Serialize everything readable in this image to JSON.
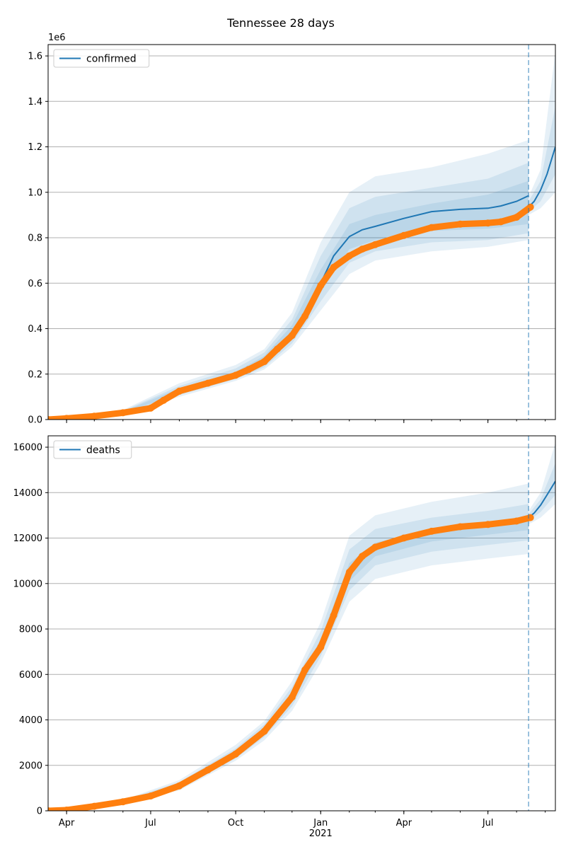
{
  "figure": {
    "title": "Tennessee 28 days",
    "x_ticks": [
      {
        "date": "2020-04-01",
        "label": "Apr"
      },
      {
        "date": "2020-07-01",
        "label": "Jul"
      },
      {
        "date": "2020-10-01",
        "label": "Oct"
      },
      {
        "date": "2021-01-01",
        "label": "Jan"
      },
      {
        "date": "2021-04-01",
        "label": "Apr"
      },
      {
        "date": "2021-07-01",
        "label": "Jul"
      }
    ],
    "x_year_label": "2021"
  },
  "colors": {
    "model_line": "#1f77b4",
    "band": "#1f77b4",
    "observed": "#ff7f0e",
    "grid": "#b0b0b0"
  },
  "chart_data": [
    {
      "type": "line",
      "name": "confirmed",
      "legend_location": "upper left",
      "grid": "horizontal",
      "xlim": [
        "2020-03-12",
        "2021-09-12"
      ],
      "ylim": [
        0,
        1650000
      ],
      "y_offset_label": "1e6",
      "y_scale": 1000000,
      "y_ticks": [
        0,
        200000,
        400000,
        600000,
        800000,
        1000000,
        1200000,
        1400000,
        1600000
      ],
      "y_tick_labels": [
        "0.0",
        "0.2",
        "0.4",
        "0.6",
        "0.8",
        "1.0",
        "1.2",
        "1.4",
        "1.6"
      ],
      "forecast_start": "2021-08-14",
      "observed": {
        "x": [
          "2020-03-12",
          "2020-04-01",
          "2020-05-01",
          "2020-06-01",
          "2020-07-01",
          "2020-07-15",
          "2020-08-01",
          "2020-09-01",
          "2020-10-01",
          "2020-10-15",
          "2020-11-01",
          "2020-11-15",
          "2020-12-01",
          "2020-12-15",
          "2021-01-01",
          "2021-01-15",
          "2021-02-01",
          "2021-02-15",
          "2021-03-01",
          "2021-04-01",
          "2021-05-01",
          "2021-06-01",
          "2021-07-01",
          "2021-07-15",
          "2021-08-01",
          "2021-08-16"
        ],
        "y": [
          0,
          5000,
          15000,
          30000,
          50000,
          85000,
          125000,
          160000,
          195000,
          220000,
          255000,
          310000,
          370000,
          455000,
          590000,
          670000,
          720000,
          750000,
          770000,
          810000,
          845000,
          860000,
          865000,
          870000,
          890000,
          935000
        ]
      },
      "model": {
        "x": [
          "2020-03-12",
          "2020-04-01",
          "2020-05-01",
          "2020-06-01",
          "2020-07-01",
          "2020-07-15",
          "2020-08-01",
          "2020-09-01",
          "2020-10-01",
          "2020-10-15",
          "2020-11-01",
          "2020-11-15",
          "2020-12-01",
          "2020-12-15",
          "2021-01-01",
          "2021-01-15",
          "2021-02-01",
          "2021-02-15",
          "2021-03-01",
          "2021-04-01",
          "2021-05-01",
          "2021-06-01",
          "2021-07-01",
          "2021-07-15",
          "2021-08-01",
          "2021-08-14"
        ],
        "y": [
          0,
          5000,
          15000,
          30000,
          50000,
          85000,
          125000,
          160000,
          195000,
          220000,
          255000,
          310000,
          375000,
          465000,
          600000,
          720000,
          805000,
          835000,
          850000,
          885000,
          915000,
          925000,
          930000,
          940000,
          960000,
          985000
        ]
      },
      "forecast": {
        "x": [
          "2021-08-14",
          "2021-08-20",
          "2021-08-27",
          "2021-09-03",
          "2021-09-12"
        ],
        "y": [
          935000,
          960000,
          1010000,
          1080000,
          1200000
        ]
      },
      "bands": [
        {
          "x": [
            "2020-03-12",
            "2020-06-01",
            "2020-08-01",
            "2020-10-01",
            "2020-11-01",
            "2020-12-01",
            "2021-01-01",
            "2021-02-01",
            "2021-03-01",
            "2021-05-01",
            "2021-07-01",
            "2021-08-14"
          ],
          "low": [
            0,
            22000,
            100000,
            170000,
            220000,
            320000,
            480000,
            640000,
            700000,
            740000,
            760000,
            790000
          ],
          "high": [
            0,
            42000,
            160000,
            240000,
            310000,
            470000,
            780000,
            1000000,
            1070000,
            1110000,
            1170000,
            1230000
          ]
        },
        {
          "x": [
            "2020-03-12",
            "2020-06-01",
            "2020-08-01",
            "2020-10-01",
            "2020-11-01",
            "2020-12-01",
            "2021-01-01",
            "2021-02-01",
            "2021-03-01",
            "2021-05-01",
            "2021-07-01",
            "2021-08-14"
          ],
          "low": [
            0,
            25000,
            108000,
            178000,
            230000,
            335000,
            520000,
            690000,
            740000,
            780000,
            790000,
            820000
          ],
          "high": [
            0,
            38000,
            148000,
            225000,
            295000,
            440000,
            720000,
            930000,
            980000,
            1020000,
            1060000,
            1130000
          ]
        },
        {
          "x": [
            "2020-03-12",
            "2020-06-01",
            "2020-08-01",
            "2020-10-01",
            "2020-11-01",
            "2020-12-01",
            "2021-01-01",
            "2021-02-01",
            "2021-03-01",
            "2021-05-01",
            "2021-07-01",
            "2021-08-14"
          ],
          "low": [
            0,
            27000,
            115000,
            185000,
            240000,
            350000,
            560000,
            750000,
            790000,
            830000,
            840000,
            860000
          ],
          "high": [
            0,
            35000,
            138000,
            210000,
            280000,
            415000,
            660000,
            860000,
            900000,
            950000,
            990000,
            1050000
          ]
        }
      ],
      "forecast_bands": [
        {
          "x": [
            "2021-08-14",
            "2021-08-27",
            "2021-09-12"
          ],
          "low": [
            900000,
            930000,
            1000000
          ],
          "high": [
            980000,
            1100000,
            1620000
          ]
        },
        {
          "x": [
            "2021-08-14",
            "2021-08-27",
            "2021-09-12"
          ],
          "low": [
            915000,
            960000,
            1080000
          ],
          "high": [
            960000,
            1050000,
            1380000
          ]
        }
      ]
    },
    {
      "type": "line",
      "name": "deaths",
      "legend_location": "upper left",
      "grid": "horizontal",
      "xlim": [
        "2020-03-12",
        "2021-09-12"
      ],
      "ylim": [
        0,
        16500
      ],
      "y_scale": 1,
      "y_ticks": [
        0,
        2000,
        4000,
        6000,
        8000,
        10000,
        12000,
        14000,
        16000
      ],
      "y_tick_labels": [
        "0",
        "2000",
        "4000",
        "6000",
        "8000",
        "10000",
        "12000",
        "14000",
        "16000"
      ],
      "forecast_start": "2021-08-14",
      "observed": {
        "x": [
          "2020-03-12",
          "2020-04-01",
          "2020-05-01",
          "2020-06-01",
          "2020-07-01",
          "2020-08-01",
          "2020-09-01",
          "2020-10-01",
          "2020-11-01",
          "2020-12-01",
          "2020-12-15",
          "2021-01-01",
          "2021-01-15",
          "2021-02-01",
          "2021-02-15",
          "2021-03-01",
          "2021-04-01",
          "2021-05-01",
          "2021-06-01",
          "2021-07-01",
          "2021-08-01",
          "2021-08-16"
        ],
        "y": [
          0,
          30,
          200,
          400,
          650,
          1100,
          1800,
          2500,
          3500,
          5000,
          6200,
          7200,
          8600,
          10500,
          11200,
          11600,
          12000,
          12300,
          12500,
          12600,
          12750,
          12900
        ]
      },
      "model": {
        "x": [
          "2020-03-12",
          "2020-04-01",
          "2020-05-01",
          "2020-06-01",
          "2020-07-01",
          "2020-08-01",
          "2020-09-01",
          "2020-10-01",
          "2020-11-01",
          "2020-12-01",
          "2020-12-15",
          "2021-01-01",
          "2021-01-15",
          "2021-02-01",
          "2021-02-15",
          "2021-03-01",
          "2021-04-01",
          "2021-05-01",
          "2021-06-01",
          "2021-07-01",
          "2021-08-01",
          "2021-08-14"
        ],
        "y": [
          0,
          30,
          200,
          400,
          650,
          1100,
          1800,
          2500,
          3500,
          5000,
          6200,
          7200,
          8600,
          10500,
          11200,
          11600,
          12000,
          12300,
          12500,
          12600,
          12750,
          12900
        ]
      },
      "forecast": {
        "x": [
          "2021-08-14",
          "2021-08-20",
          "2021-08-27",
          "2021-09-03",
          "2021-09-12"
        ],
        "y": [
          12900,
          13100,
          13450,
          13900,
          14500
        ]
      },
      "bands": [
        {
          "x": [
            "2020-03-12",
            "2020-06-01",
            "2020-08-01",
            "2020-10-01",
            "2020-11-01",
            "2020-12-01",
            "2021-01-01",
            "2021-02-01",
            "2021-03-01",
            "2021-05-01",
            "2021-07-01",
            "2021-08-14"
          ],
          "low": [
            0,
            320,
            900,
            2200,
            3100,
            4400,
            6500,
            9200,
            10200,
            10800,
            11100,
            11300
          ],
          "high": [
            0,
            480,
            1350,
            2900,
            3950,
            5700,
            8300,
            12100,
            13000,
            13600,
            14000,
            14400
          ]
        },
        {
          "x": [
            "2020-03-12",
            "2020-06-01",
            "2020-08-01",
            "2020-10-01",
            "2020-11-01",
            "2020-12-01",
            "2021-01-01",
            "2021-02-01",
            "2021-03-01",
            "2021-05-01",
            "2021-07-01",
            "2021-08-14"
          ],
          "low": [
            0,
            350,
            980,
            2300,
            3250,
            4600,
            6800,
            9700,
            10800,
            11400,
            11700,
            11900
          ],
          "high": [
            0,
            450,
            1260,
            2750,
            3800,
            5450,
            7900,
            11500,
            12400,
            12900,
            13200,
            13500
          ]
        },
        {
          "x": [
            "2020-03-12",
            "2020-06-01",
            "2020-08-01",
            "2020-10-01",
            "2020-11-01",
            "2020-12-01",
            "2021-01-01",
            "2021-02-01",
            "2021-03-01",
            "2021-05-01",
            "2021-07-01",
            "2021-08-14"
          ],
          "low": [
            0,
            370,
            1030,
            2400,
            3350,
            4800,
            7050,
            10100,
            11200,
            11850,
            12150,
            12350
          ],
          "high": [
            0,
            430,
            1180,
            2620,
            3650,
            5200,
            7550,
            10900,
            11800,
            12400,
            12650,
            12900
          ]
        }
      ],
      "forecast_bands": [
        {
          "x": [
            "2021-08-14",
            "2021-08-27",
            "2021-09-12"
          ],
          "low": [
            12600,
            12900,
            13500
          ],
          "high": [
            13200,
            14000,
            16200
          ]
        },
        {
          "x": [
            "2021-08-14",
            "2021-08-27",
            "2021-09-12"
          ],
          "low": [
            12750,
            13150,
            13900
          ],
          "high": [
            13050,
            13700,
            15300
          ]
        }
      ]
    }
  ]
}
